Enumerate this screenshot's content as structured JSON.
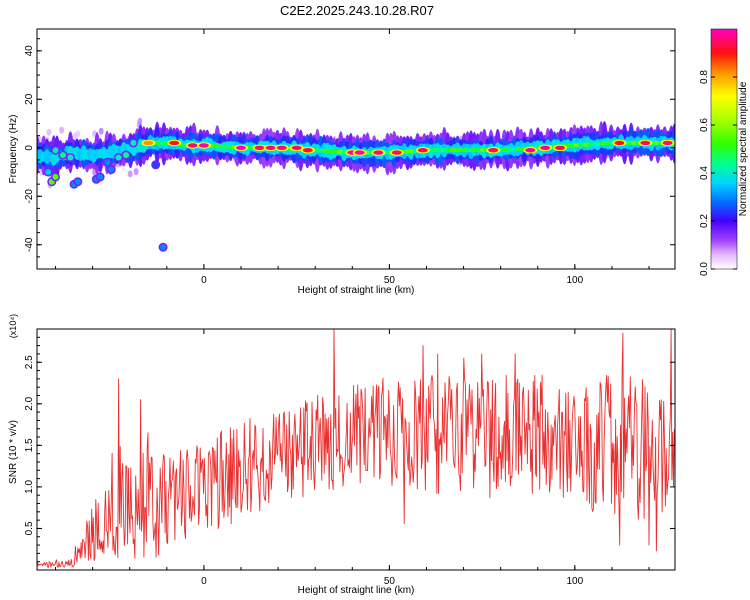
{
  "title": "C2E2.2025.243.10.28.R07",
  "chart_data": [
    {
      "type": "heatmap",
      "xlabel": "Height of straight line (km)",
      "ylabel": "Frequency (Hz)",
      "xlim": [
        -45,
        127
      ],
      "ylim": [
        -50,
        49
      ],
      "xticks": [
        0,
        50,
        100
      ],
      "yticks": [
        -40,
        -20,
        0,
        20,
        40
      ],
      "colorbar": {
        "label": "Normalized spectral amplitude",
        "range": [
          0,
          1
        ],
        "ticks": [
          "0.0",
          "0.2",
          "0.4",
          "0.6",
          "0.8"
        ],
        "tick_values": [
          0,
          0.2,
          0.4,
          0.6,
          0.8
        ]
      },
      "ridge": [
        {
          "x": -45,
          "y": -3
        },
        {
          "x": -40,
          "y": -4
        },
        {
          "x": -35,
          "y": -2
        },
        {
          "x": -30,
          "y": -3
        },
        {
          "x": -25,
          "y": -2
        },
        {
          "x": -20,
          "y": -1
        },
        {
          "x": -15,
          "y": 2
        },
        {
          "x": -10,
          "y": 2
        },
        {
          "x": -5,
          "y": 1
        },
        {
          "x": 0,
          "y": 1
        },
        {
          "x": 10,
          "y": 0
        },
        {
          "x": 20,
          "y": 0
        },
        {
          "x": 30,
          "y": -1
        },
        {
          "x": 40,
          "y": -2
        },
        {
          "x": 50,
          "y": -2
        },
        {
          "x": 60,
          "y": -1
        },
        {
          "x": 70,
          "y": -1
        },
        {
          "x": 80,
          "y": -1
        },
        {
          "x": 90,
          "y": 0
        },
        {
          "x": 100,
          "y": 1
        },
        {
          "x": 110,
          "y": 2
        },
        {
          "x": 120,
          "y": 2
        },
        {
          "x": 127,
          "y": 2
        }
      ],
      "peaks": [
        {
          "x": -15,
          "y": 2,
          "v": 0.82
        },
        {
          "x": -8,
          "y": 2,
          "v": 0.9
        },
        {
          "x": -3,
          "y": 1,
          "v": 0.95
        },
        {
          "x": 0,
          "y": 1,
          "v": 0.98
        },
        {
          "x": 10,
          "y": 0,
          "v": 1.0
        },
        {
          "x": 15,
          "y": 0,
          "v": 0.95
        },
        {
          "x": 18,
          "y": 0,
          "v": 0.95
        },
        {
          "x": 21,
          "y": 0,
          "v": 0.97
        },
        {
          "x": 25,
          "y": 0,
          "v": 0.95
        },
        {
          "x": 28,
          "y": -1,
          "v": 0.92
        },
        {
          "x": 40,
          "y": -2,
          "v": 1.0
        },
        {
          "x": 42,
          "y": -2,
          "v": 1.0
        },
        {
          "x": 47,
          "y": -2,
          "v": 0.97
        },
        {
          "x": 52,
          "y": -2,
          "v": 0.95
        },
        {
          "x": 59,
          "y": -1,
          "v": 0.95
        },
        {
          "x": 78,
          "y": -1,
          "v": 0.95
        },
        {
          "x": 88,
          "y": -1,
          "v": 0.97
        },
        {
          "x": 92,
          "y": 0,
          "v": 0.97
        },
        {
          "x": 96,
          "y": 0,
          "v": 0.93
        },
        {
          "x": 112,
          "y": 2,
          "v": 0.9
        },
        {
          "x": 119,
          "y": 2,
          "v": 0.95
        },
        {
          "x": 125,
          "y": 2,
          "v": 0.95
        }
      ],
      "scatter": [
        {
          "x": -41,
          "y": -14,
          "v": 0.55
        },
        {
          "x": -40,
          "y": -12,
          "v": 0.55
        },
        {
          "x": -42,
          "y": -10,
          "v": 0.35
        },
        {
          "x": -40,
          "y": -1,
          "v": 0.4
        },
        {
          "x": -38,
          "y": -3,
          "v": 0.45
        },
        {
          "x": -36,
          "y": -4,
          "v": 0.4
        },
        {
          "x": -35,
          "y": -15,
          "v": 0.3
        },
        {
          "x": -34,
          "y": -14,
          "v": 0.3
        },
        {
          "x": -29,
          "y": -13,
          "v": 0.3
        },
        {
          "x": -28,
          "y": -12,
          "v": 0.3
        },
        {
          "x": -26,
          "y": -6,
          "v": 0.3
        },
        {
          "x": -25,
          "y": -9,
          "v": 0.3
        },
        {
          "x": -23,
          "y": -4,
          "v": 0.4
        },
        {
          "x": -21,
          "y": -3,
          "v": 0.45
        },
        {
          "x": -19,
          "y": 2,
          "v": 0.4
        },
        {
          "x": -13,
          "y": -7,
          "v": 0.25
        },
        {
          "x": -11,
          "y": -41,
          "v": 0.3
        }
      ]
    },
    {
      "type": "line",
      "xlabel": "Height of straight line (km)",
      "ylabel": "SNR (10 * v/v)",
      "y_scale_label": "(x10⁴)",
      "xlim": [
        -45,
        127
      ],
      "ylim": [
        0,
        29000
      ],
      "xticks": [
        0,
        50,
        100
      ],
      "yticks": [
        5000,
        10000,
        15000,
        20000,
        25000
      ],
      "ytick_labels": [
        "0.5",
        "1.0",
        "1.5",
        "2.0",
        "2.5"
      ],
      "color": "#e83030",
      "envelope": [
        {
          "x": -45,
          "lo": 300,
          "base": 600,
          "hi": 1000
        },
        {
          "x": -36,
          "lo": 300,
          "base": 800,
          "hi": 1400
        },
        {
          "x": -32,
          "lo": 500,
          "base": 2500,
          "hi": 6000
        },
        {
          "x": -25,
          "lo": 1500,
          "base": 6000,
          "hi": 14000
        },
        {
          "x": -20,
          "lo": 1000,
          "base": 7000,
          "hi": 16000
        },
        {
          "x": -15,
          "lo": 800,
          "base": 6000,
          "hi": 15000
        },
        {
          "x": -8,
          "lo": 3000,
          "base": 8000,
          "hi": 14000
        },
        {
          "x": 0,
          "lo": 4000,
          "base": 10000,
          "hi": 16000
        },
        {
          "x": 10,
          "lo": 6000,
          "base": 12000,
          "hi": 18000
        },
        {
          "x": 20,
          "lo": 8000,
          "base": 13500,
          "hi": 19000
        },
        {
          "x": 30,
          "lo": 9000,
          "base": 15000,
          "hi": 21000
        },
        {
          "x": 40,
          "lo": 10000,
          "base": 16000,
          "hi": 23000
        },
        {
          "x": 50,
          "lo": 10000,
          "base": 16500,
          "hi": 24000
        },
        {
          "x": 60,
          "lo": 9000,
          "base": 16500,
          "hi": 24000
        },
        {
          "x": 70,
          "lo": 9000,
          "base": 16000,
          "hi": 23000
        },
        {
          "x": 80,
          "lo": 8500,
          "base": 16000,
          "hi": 23500
        },
        {
          "x": 90,
          "lo": 9000,
          "base": 16500,
          "hi": 24000
        },
        {
          "x": 100,
          "lo": 8000,
          "base": 15500,
          "hi": 23000
        },
        {
          "x": 110,
          "lo": 6000,
          "base": 15000,
          "hi": 23500
        },
        {
          "x": 120,
          "lo": 5000,
          "base": 15000,
          "hi": 24000
        },
        {
          "x": 127,
          "lo": 8000,
          "base": 13000,
          "hi": 20000
        }
      ],
      "spikes": [
        {
          "x": -23,
          "y": 23000
        },
        {
          "x": -17,
          "y": 20500
        },
        {
          "x": -15,
          "y": 16500
        },
        {
          "x": 35,
          "y": 29000
        },
        {
          "x": 59,
          "y": 27000
        },
        {
          "x": 63,
          "y": 26000
        },
        {
          "x": 70,
          "y": 25500
        },
        {
          "x": 75,
          "y": 26000
        },
        {
          "x": 84,
          "y": 26000
        },
        {
          "x": 113,
          "y": 28500
        },
        {
          "x": 126,
          "y": 29000
        },
        {
          "x": 120,
          "y": 3000
        },
        {
          "x": 122,
          "y": 2300
        },
        {
          "x": 54,
          "y": 5600
        },
        {
          "x": 112,
          "y": 3000
        }
      ]
    }
  ]
}
